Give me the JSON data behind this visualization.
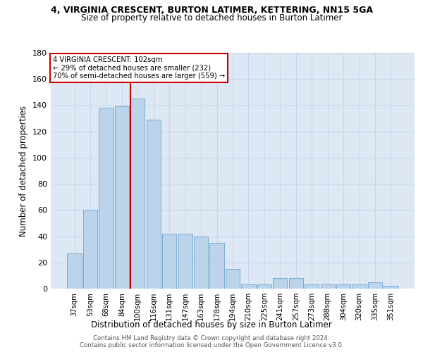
{
  "title_line1": "4, VIRGINIA CRESCENT, BURTON LATIMER, KETTERING, NN15 5GA",
  "title_line2": "Size of property relative to detached houses in Burton Latimer",
  "xlabel": "Distribution of detached houses by size in Burton Latimer",
  "ylabel": "Number of detached properties",
  "categories": [
    "37sqm",
    "53sqm",
    "68sqm",
    "84sqm",
    "100sqm",
    "116sqm",
    "131sqm",
    "147sqm",
    "163sqm",
    "178sqm",
    "194sqm",
    "210sqm",
    "225sqm",
    "241sqm",
    "257sqm",
    "273sqm",
    "288sqm",
    "304sqm",
    "320sqm",
    "335sqm",
    "351sqm"
  ],
  "values": [
    27,
    60,
    138,
    139,
    145,
    129,
    42,
    42,
    40,
    35,
    15,
    3,
    3,
    8,
    8,
    3,
    3,
    3,
    3,
    5,
    2
  ],
  "bar_color": "#bcd4eb",
  "bar_edge_color": "#7aadd4",
  "vline_color": "#cc0000",
  "vline_x_index": 4,
  "annotation_text": "4 VIRGINIA CRESCENT: 102sqm\n← 29% of detached houses are smaller (232)\n70% of semi-detached houses are larger (559) →",
  "annotation_box_color": "#ffffff",
  "annotation_box_edge_color": "#cc0000",
  "ylim": [
    0,
    180
  ],
  "yticks": [
    0,
    20,
    40,
    60,
    80,
    100,
    120,
    140,
    160,
    180
  ],
  "grid_color": "#c8d8ea",
  "background_color": "#dde8f4",
  "footer_line1": "Contains HM Land Registry data © Crown copyright and database right 2024.",
  "footer_line2": "Contains public sector information licensed under the Open Government Licence v3.0."
}
